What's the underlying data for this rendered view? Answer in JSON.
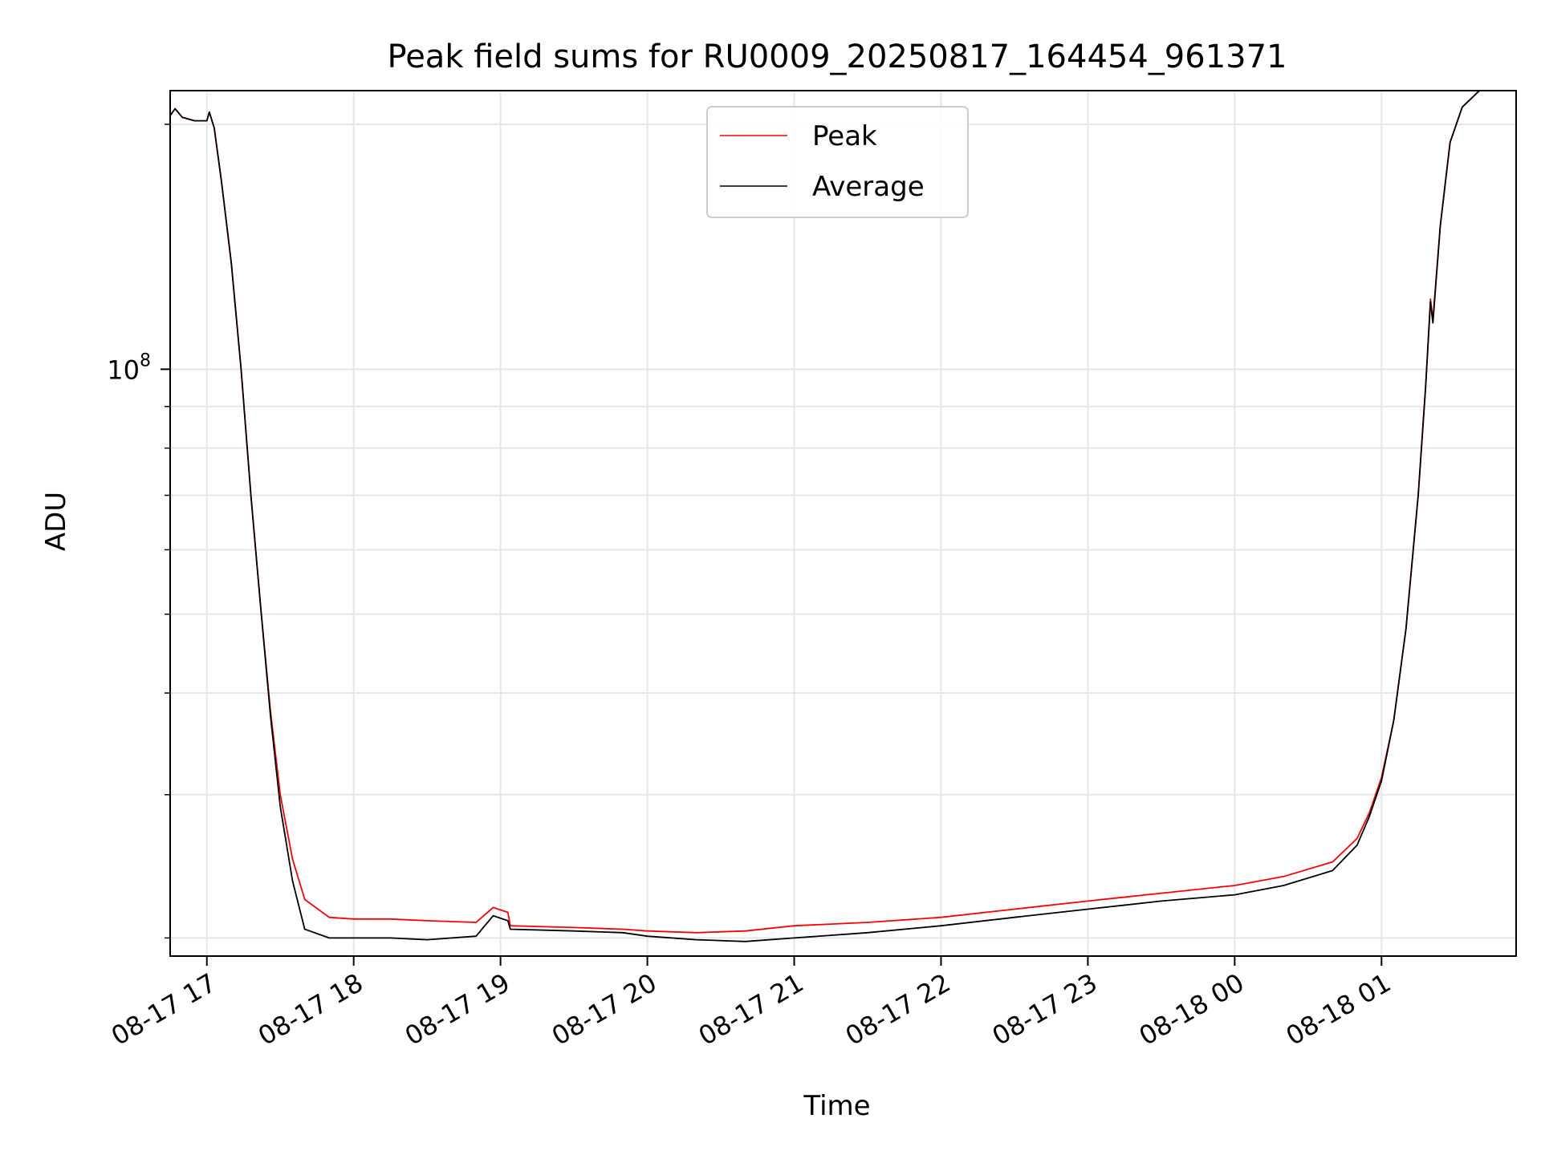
{
  "chart_data": {
    "type": "line",
    "title": "Peak field sums for RU0009_20250817_164454_961371",
    "xlabel": "Time",
    "ylabel": "ADU",
    "y_scale": "log",
    "x_range": [
      "2025-08-17 16:45",
      "2025-08-18 01:55"
    ],
    "ylim": [
      19000000,
      220000000
    ],
    "grid": true,
    "legend_position": "top-center",
    "x_ticks": [
      {
        "t": "2025-08-17 17:00",
        "label": "08-17 17"
      },
      {
        "t": "2025-08-17 18:00",
        "label": "08-17 18"
      },
      {
        "t": "2025-08-17 19:00",
        "label": "08-17 19"
      },
      {
        "t": "2025-08-17 20:00",
        "label": "08-17 20"
      },
      {
        "t": "2025-08-17 21:00",
        "label": "08-17 21"
      },
      {
        "t": "2025-08-17 22:00",
        "label": "08-17 22"
      },
      {
        "t": "2025-08-17 23:00",
        "label": "08-17 23"
      },
      {
        "t": "2025-08-18 00:00",
        "label": "08-18 00"
      },
      {
        "t": "2025-08-18 01:00",
        "label": "08-18 01"
      }
    ],
    "y_major_tick": {
      "value": 100000000,
      "base": "10",
      "exponent": "8"
    },
    "y_minor_ticks": [
      20000000,
      30000000,
      40000000,
      50000000,
      60000000,
      70000000,
      80000000,
      90000000,
      200000000
    ],
    "series": [
      {
        "name": "Peak",
        "color": "#ff0000",
        "points": [
          [
            "2025-08-17 16:45",
            205000000
          ],
          [
            "2025-08-17 16:47",
            209000000
          ],
          [
            "2025-08-17 16:50",
            204000000
          ],
          [
            "2025-08-17 16:55",
            202000000
          ],
          [
            "2025-08-17 17:00",
            202000000
          ],
          [
            "2025-08-17 17:01",
            207000000
          ],
          [
            "2025-08-17 17:03",
            198000000
          ],
          [
            "2025-08-17 17:06",
            170000000
          ],
          [
            "2025-08-17 17:10",
            135000000
          ],
          [
            "2025-08-17 17:14",
            100000000
          ],
          [
            "2025-08-17 17:18",
            70000000
          ],
          [
            "2025-08-17 17:22",
            51000000
          ],
          [
            "2025-08-17 17:26",
            38000000
          ],
          [
            "2025-08-17 17:30",
            30000000
          ],
          [
            "2025-08-17 17:35",
            25000000
          ],
          [
            "2025-08-17 17:40",
            22300000
          ],
          [
            "2025-08-17 17:50",
            21200000
          ],
          [
            "2025-08-17 18:00",
            21100000
          ],
          [
            "2025-08-17 18:15",
            21100000
          ],
          [
            "2025-08-17 18:30",
            21000000
          ],
          [
            "2025-08-17 18:50",
            20900000
          ],
          [
            "2025-08-17 18:57",
            21800000
          ],
          [
            "2025-08-17 19:03",
            21500000
          ],
          [
            "2025-08-17 19:04",
            20700000
          ],
          [
            "2025-08-17 19:30",
            20600000
          ],
          [
            "2025-08-17 19:50",
            20500000
          ],
          [
            "2025-08-17 20:00",
            20400000
          ],
          [
            "2025-08-17 20:20",
            20300000
          ],
          [
            "2025-08-17 20:40",
            20400000
          ],
          [
            "2025-08-17 21:00",
            20700000
          ],
          [
            "2025-08-17 21:30",
            20900000
          ],
          [
            "2025-08-17 22:00",
            21200000
          ],
          [
            "2025-08-17 22:30",
            21700000
          ],
          [
            "2025-08-17 23:00",
            22200000
          ],
          [
            "2025-08-17 23:30",
            22700000
          ],
          [
            "2025-08-18 00:00",
            23200000
          ],
          [
            "2025-08-18 00:20",
            23800000
          ],
          [
            "2025-08-18 00:40",
            24800000
          ],
          [
            "2025-08-18 00:50",
            26500000
          ],
          [
            "2025-08-18 00:55",
            28500000
          ],
          [
            "2025-08-18 01:00",
            31500000
          ],
          [
            "2025-08-18 01:05",
            37000000
          ],
          [
            "2025-08-18 01:10",
            48000000
          ],
          [
            "2025-08-18 01:15",
            70000000
          ],
          [
            "2025-08-18 01:18",
            95000000
          ],
          [
            "2025-08-18 01:20",
            122000000
          ],
          [
            "2025-08-18 01:21",
            115000000
          ],
          [
            "2025-08-18 01:24",
            150000000
          ],
          [
            "2025-08-18 01:28",
            190000000
          ],
          [
            "2025-08-18 01:33",
            210000000
          ],
          [
            "2025-08-18 01:40",
            220000000
          ],
          [
            "2025-08-18 01:55",
            220000000
          ]
        ]
      },
      {
        "name": "Average",
        "color": "#000000",
        "points": [
          [
            "2025-08-17 16:45",
            205000000
          ],
          [
            "2025-08-17 16:47",
            209000000
          ],
          [
            "2025-08-17 16:50",
            204000000
          ],
          [
            "2025-08-17 16:55",
            202000000
          ],
          [
            "2025-08-17 17:00",
            202000000
          ],
          [
            "2025-08-17 17:01",
            207000000
          ],
          [
            "2025-08-17 17:03",
            198000000
          ],
          [
            "2025-08-17 17:06",
            170000000
          ],
          [
            "2025-08-17 17:10",
            135000000
          ],
          [
            "2025-08-17 17:14",
            100000000
          ],
          [
            "2025-08-17 17:18",
            70000000
          ],
          [
            "2025-08-17 17:22",
            51000000
          ],
          [
            "2025-08-17 17:26",
            37500000
          ],
          [
            "2025-08-17 17:30",
            29000000
          ],
          [
            "2025-08-17 17:35",
            23500000
          ],
          [
            "2025-08-17 17:40",
            20500000
          ],
          [
            "2025-08-17 17:50",
            20000000
          ],
          [
            "2025-08-17 18:00",
            20000000
          ],
          [
            "2025-08-17 18:15",
            20000000
          ],
          [
            "2025-08-17 18:30",
            19900000
          ],
          [
            "2025-08-17 18:50",
            20100000
          ],
          [
            "2025-08-17 18:57",
            21300000
          ],
          [
            "2025-08-17 19:03",
            21000000
          ],
          [
            "2025-08-17 19:04",
            20500000
          ],
          [
            "2025-08-17 19:30",
            20400000
          ],
          [
            "2025-08-17 19:50",
            20300000
          ],
          [
            "2025-08-17 20:00",
            20100000
          ],
          [
            "2025-08-17 20:20",
            19900000
          ],
          [
            "2025-08-17 20:40",
            19800000
          ],
          [
            "2025-08-17 21:00",
            20000000
          ],
          [
            "2025-08-17 21:30",
            20300000
          ],
          [
            "2025-08-17 22:00",
            20700000
          ],
          [
            "2025-08-17 22:30",
            21200000
          ],
          [
            "2025-08-17 23:00",
            21700000
          ],
          [
            "2025-08-17 23:30",
            22200000
          ],
          [
            "2025-08-18 00:00",
            22600000
          ],
          [
            "2025-08-18 00:20",
            23200000
          ],
          [
            "2025-08-18 00:40",
            24200000
          ],
          [
            "2025-08-18 00:50",
            26000000
          ],
          [
            "2025-08-18 00:55",
            28200000
          ],
          [
            "2025-08-18 01:00",
            31200000
          ],
          [
            "2025-08-18 01:05",
            37000000
          ],
          [
            "2025-08-18 01:10",
            48000000
          ],
          [
            "2025-08-18 01:15",
            70000000
          ],
          [
            "2025-08-18 01:18",
            95000000
          ],
          [
            "2025-08-18 01:20",
            121000000
          ],
          [
            "2025-08-18 01:21",
            114000000
          ],
          [
            "2025-08-18 01:24",
            150000000
          ],
          [
            "2025-08-18 01:28",
            190000000
          ],
          [
            "2025-08-18 01:33",
            210000000
          ],
          [
            "2025-08-18 01:40",
            220000000
          ],
          [
            "2025-08-18 01:55",
            220000000
          ]
        ]
      }
    ]
  }
}
